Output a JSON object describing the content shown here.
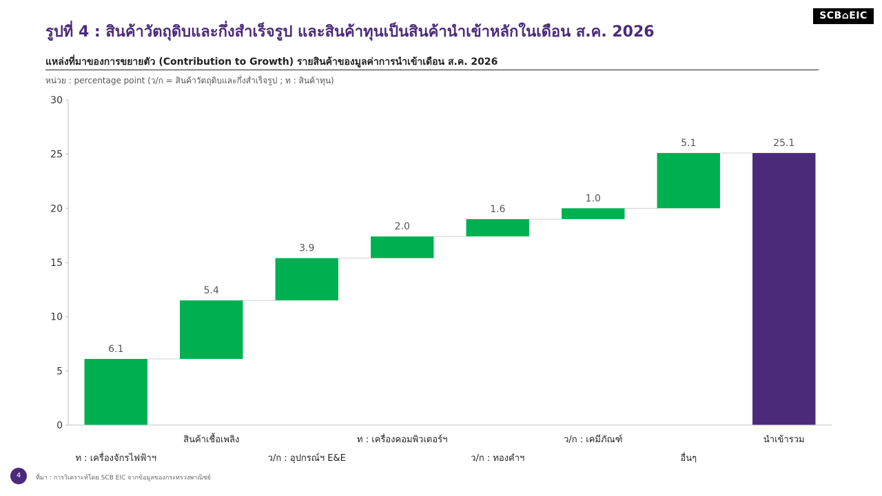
{
  "brand": {
    "logo_text": "SCB⌂EIC"
  },
  "header": {
    "title": "รูปที่ 4 : สินค้าวัตถุดิบและกึ่งสำเร็จรูป และสินค้าทุนเป็นสินค้านำเข้าหลักในเดือน ส.ค. 2026",
    "subtitle": "แหล่งที่มาของการขยายตัว (Contribution to Growth) รายสินค้าของมูลค่าการนำเข้าเดือน ส.ค. 2026",
    "unit": "หน่วย : percentage point (ว/ก = สินค้าวัตถุดิบและกึ่งสำเร็จรูป ; ท : สินค้าทุน)"
  },
  "footer": {
    "page_number": "4",
    "source": "ที่มา : การวิเคราะห์โดย SCB EIC จากข้อมูลของกระทรวงพาณิชย์"
  },
  "chart_data": {
    "type": "bar",
    "subtype": "waterfall",
    "categories": [
      "ท : เครื่องจักรไฟฟ้าฯ",
      "สินค้าเชื้อเพลิง",
      "ว/ก : อุปกรณ์ฯ E&E",
      "ท : เครื่องคอมพิวเตอร์ฯ",
      "ว/ก : ทองคำฯ",
      "ว/ก : เคมีภัณฑ์",
      "อื่นๆ",
      "นำเข้ารวม"
    ],
    "values": [
      6.1,
      5.4,
      3.9,
      2.0,
      1.6,
      1.0,
      5.1,
      25.1
    ],
    "data_labels": [
      "6.1",
      "5.4",
      "3.9",
      "2.0",
      "1.6",
      "1.0",
      "5.1",
      "25.1"
    ],
    "is_total": [
      false,
      false,
      false,
      false,
      false,
      false,
      false,
      true
    ],
    "ylim": [
      0,
      30
    ],
    "yticks": [
      0,
      5,
      10,
      15,
      20,
      25,
      30
    ],
    "grid": false,
    "colors": {
      "increment": "#00b050",
      "total": "#4b2a7b",
      "connector": "#cfcfcf",
      "axis": "#bfbfbf"
    }
  }
}
